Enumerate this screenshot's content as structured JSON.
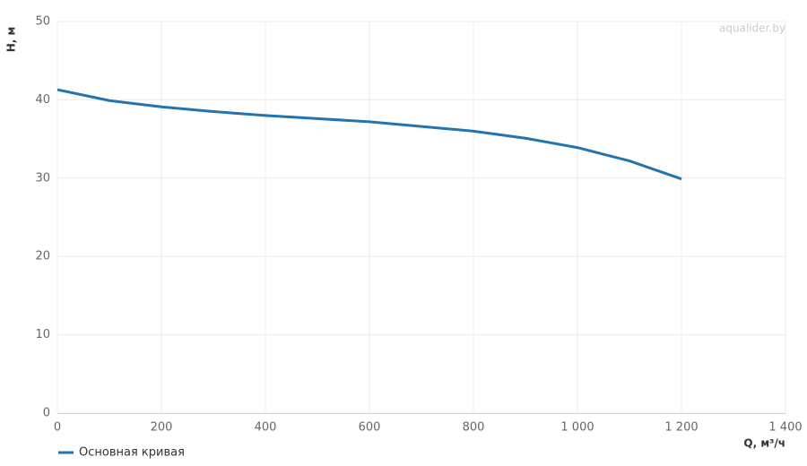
{
  "chart_data": {
    "type": "line",
    "watermark": "aqualider.by",
    "x_label": "Q, м³/ч",
    "y_label": "H, м",
    "x": [
      0,
      100,
      200,
      300,
      400,
      500,
      600,
      700,
      800,
      900,
      1000,
      1100,
      1200
    ],
    "series": [
      {
        "name": "Основная кривая",
        "color": "#2373b0",
        "values": [
          41.3,
          39.9,
          39.1,
          38.5,
          38.0,
          37.6,
          37.2,
          36.6,
          36.0,
          35.1,
          33.9,
          32.2,
          29.9
        ]
      }
    ],
    "xlim": [
      0,
      1400
    ],
    "xticks": [
      0,
      200,
      400,
      600,
      800,
      {
        "value": 1000,
        "label": "1 000"
      },
      {
        "value": 1200,
        "label": "1 200"
      },
      {
        "value": 1400,
        "label": "1 400"
      }
    ],
    "ylim": [
      0,
      50
    ],
    "yticks": [
      0,
      10,
      20,
      30,
      40,
      50
    ],
    "grid": true,
    "legend": "bottom-left"
  }
}
